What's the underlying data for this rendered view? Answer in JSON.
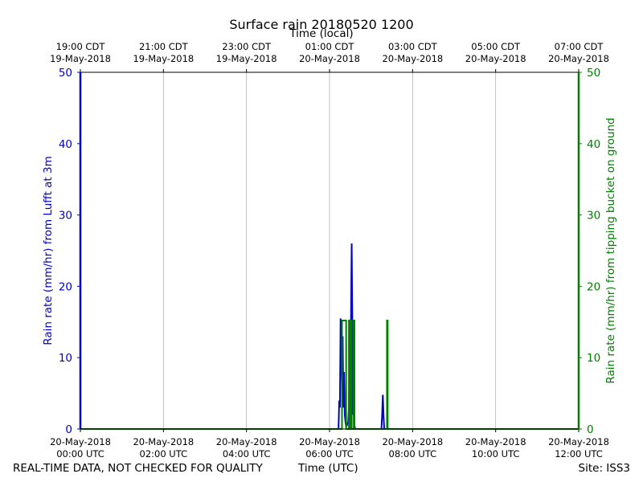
{
  "chart_data": {
    "type": "line",
    "title": "Surface rain 20180520 1200",
    "top_xlabel": "Time (local)",
    "xlabel": "Time (UTC)",
    "xlim": [
      "2018-05-20 00:00",
      "2018-05-20 12:00"
    ],
    "bottom_ticks": [
      {
        "t": "2018-05-20 00:00",
        "lines": [
          "20-May-2018",
          "00:00 UTC"
        ]
      },
      {
        "t": "2018-05-20 02:00",
        "lines": [
          "20-May-2018",
          "02:00 UTC"
        ]
      },
      {
        "t": "2018-05-20 04:00",
        "lines": [
          "20-May-2018",
          "04:00 UTC"
        ]
      },
      {
        "t": "2018-05-20 06:00",
        "lines": [
          "20-May-2018",
          "06:00 UTC"
        ]
      },
      {
        "t": "2018-05-20 08:00",
        "lines": [
          "20-May-2018",
          "08:00 UTC"
        ]
      },
      {
        "t": "2018-05-20 10:00",
        "lines": [
          "20-May-2018",
          "10:00 UTC"
        ]
      },
      {
        "t": "2018-05-20 12:00",
        "lines": [
          "20-May-2018",
          "12:00 UTC"
        ]
      }
    ],
    "top_ticks": [
      {
        "t": "2018-05-20 00:00",
        "lines": [
          "19:00 CDT",
          "19-May-2018"
        ]
      },
      {
        "t": "2018-05-20 02:00",
        "lines": [
          "21:00 CDT",
          "19-May-2018"
        ]
      },
      {
        "t": "2018-05-20 04:00",
        "lines": [
          "23:00 CDT",
          "19-May-2018"
        ]
      },
      {
        "t": "2018-05-20 06:00",
        "lines": [
          "01:00 CDT",
          "20-May-2018"
        ]
      },
      {
        "t": "2018-05-20 08:00",
        "lines": [
          "03:00 CDT",
          "20-May-2018"
        ]
      },
      {
        "t": "2018-05-20 10:00",
        "lines": [
          "05:00 CDT",
          "20-May-2018"
        ]
      },
      {
        "t": "2018-05-20 12:00",
        "lines": [
          "07:00 CDT",
          "20-May-2018"
        ]
      }
    ],
    "ylim_left": [
      0,
      50
    ],
    "ylim_right": [
      0,
      50
    ],
    "yticks": [
      0,
      10,
      20,
      30,
      40,
      50
    ],
    "ylabel_left": "Rain rate (mm/hr) from Lufft at 3m",
    "ylabel_right": "Rain rate (mm/hr) from tipping bucket on ground",
    "grid": "vertical",
    "colors": {
      "left": "#0000cc",
      "right": "#008000",
      "grid": "#b0b0b0"
    },
    "series": [
      {
        "axis": "left",
        "points": [
          [
            "2018-05-20 00:00",
            0
          ],
          [
            "2018-05-20 06:13",
            0
          ],
          [
            "2018-05-20 06:14",
            4
          ],
          [
            "2018-05-20 06:15",
            3
          ],
          [
            "2018-05-20 06:16",
            15.5
          ],
          [
            "2018-05-20 06:17",
            12
          ],
          [
            "2018-05-20 06:18",
            6
          ],
          [
            "2018-05-20 06:19",
            13
          ],
          [
            "2018-05-20 06:20",
            3
          ],
          [
            "2018-05-20 06:21",
            8
          ],
          [
            "2018-05-20 06:22",
            2
          ],
          [
            "2018-05-20 06:23",
            1
          ],
          [
            "2018-05-20 06:24",
            0.3
          ],
          [
            "2018-05-20 06:25",
            0.5
          ],
          [
            "2018-05-20 06:27",
            1
          ],
          [
            "2018-05-20 06:28",
            3
          ],
          [
            "2018-05-20 06:29",
            10
          ],
          [
            "2018-05-20 06:30",
            5
          ],
          [
            "2018-05-20 06:31",
            15
          ],
          [
            "2018-05-20 06:32",
            26
          ],
          [
            "2018-05-20 06:33",
            14
          ],
          [
            "2018-05-20 06:34",
            2
          ],
          [
            "2018-05-20 06:35",
            2.2
          ],
          [
            "2018-05-20 06:36",
            0.5
          ],
          [
            "2018-05-20 06:37",
            0
          ],
          [
            "2018-05-20 07:15",
            0
          ],
          [
            "2018-05-20 07:16",
            2
          ],
          [
            "2018-05-20 07:17",
            4.8
          ],
          [
            "2018-05-20 07:18",
            2
          ],
          [
            "2018-05-20 07:19",
            0
          ],
          [
            "2018-05-20 12:00",
            0
          ]
        ]
      },
      {
        "axis": "right",
        "points": [
          [
            "2018-05-20 00:00",
            0
          ],
          [
            "2018-05-20 06:18",
            0
          ],
          [
            "2018-05-20 06:18",
            15.2
          ],
          [
            "2018-05-20 06:24",
            15.2
          ],
          [
            "2018-05-20 06:24",
            0
          ],
          [
            "2018-05-20 06:28",
            0
          ],
          [
            "2018-05-20 06:28",
            15.2
          ],
          [
            "2018-05-20 06:29",
            15.2
          ],
          [
            "2018-05-20 06:29",
            0
          ],
          [
            "2018-05-20 06:31",
            0
          ],
          [
            "2018-05-20 06:31",
            15.2
          ],
          [
            "2018-05-20 06:32",
            15.2
          ],
          [
            "2018-05-20 06:32",
            0
          ],
          [
            "2018-05-20 06:35",
            0
          ],
          [
            "2018-05-20 06:35",
            15.2
          ],
          [
            "2018-05-20 06:36",
            15.2
          ],
          [
            "2018-05-20 06:36",
            0
          ],
          [
            "2018-05-20 07:23",
            0
          ],
          [
            "2018-05-20 07:23",
            15.2
          ],
          [
            "2018-05-20 07:24",
            15.2
          ],
          [
            "2018-05-20 07:24",
            0
          ],
          [
            "2018-05-20 12:00",
            0
          ]
        ]
      }
    ]
  },
  "footer": {
    "left": "REAL-TIME DATA, NOT CHECKED FOR QUALITY",
    "right": "Site: ISS3"
  }
}
